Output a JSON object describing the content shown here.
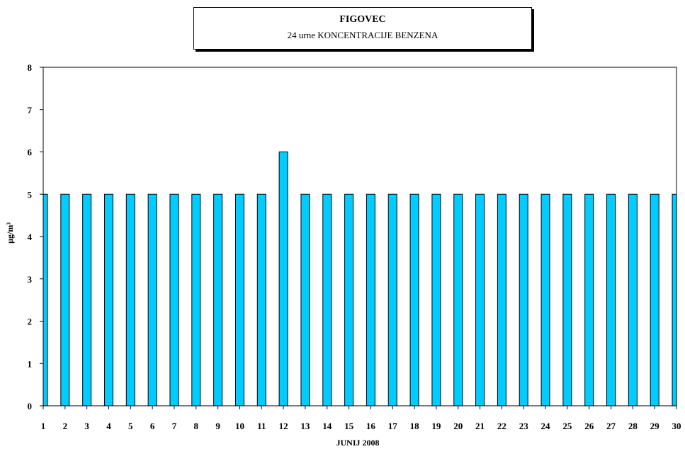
{
  "chart_data": {
    "type": "bar",
    "title": "FIGOVEC",
    "subtitle": "24 urne KONCENTRACIJE BENZENA",
    "xlabel": "JUNIJ 2008",
    "ylabel": "µg/m³",
    "ylim": [
      0,
      8
    ],
    "yticks": [
      "0",
      "1",
      "2",
      "3",
      "4",
      "5",
      "6",
      "7",
      "8"
    ],
    "categories": [
      "1",
      "2",
      "3",
      "4",
      "5",
      "6",
      "7",
      "8",
      "9",
      "10",
      "11",
      "12",
      "13",
      "14",
      "15",
      "16",
      "17",
      "18",
      "19",
      "20",
      "21",
      "22",
      "23",
      "24",
      "25",
      "26",
      "27",
      "28",
      "29",
      "30"
    ],
    "values": [
      5,
      5,
      5,
      5,
      5,
      5,
      5,
      5,
      5,
      5,
      5,
      6,
      5,
      5,
      5,
      5,
      5,
      5,
      5,
      5,
      5,
      5,
      5,
      5,
      5,
      5,
      5,
      5,
      5,
      5
    ],
    "bar_color": "#00CCFF",
    "grid": false
  }
}
